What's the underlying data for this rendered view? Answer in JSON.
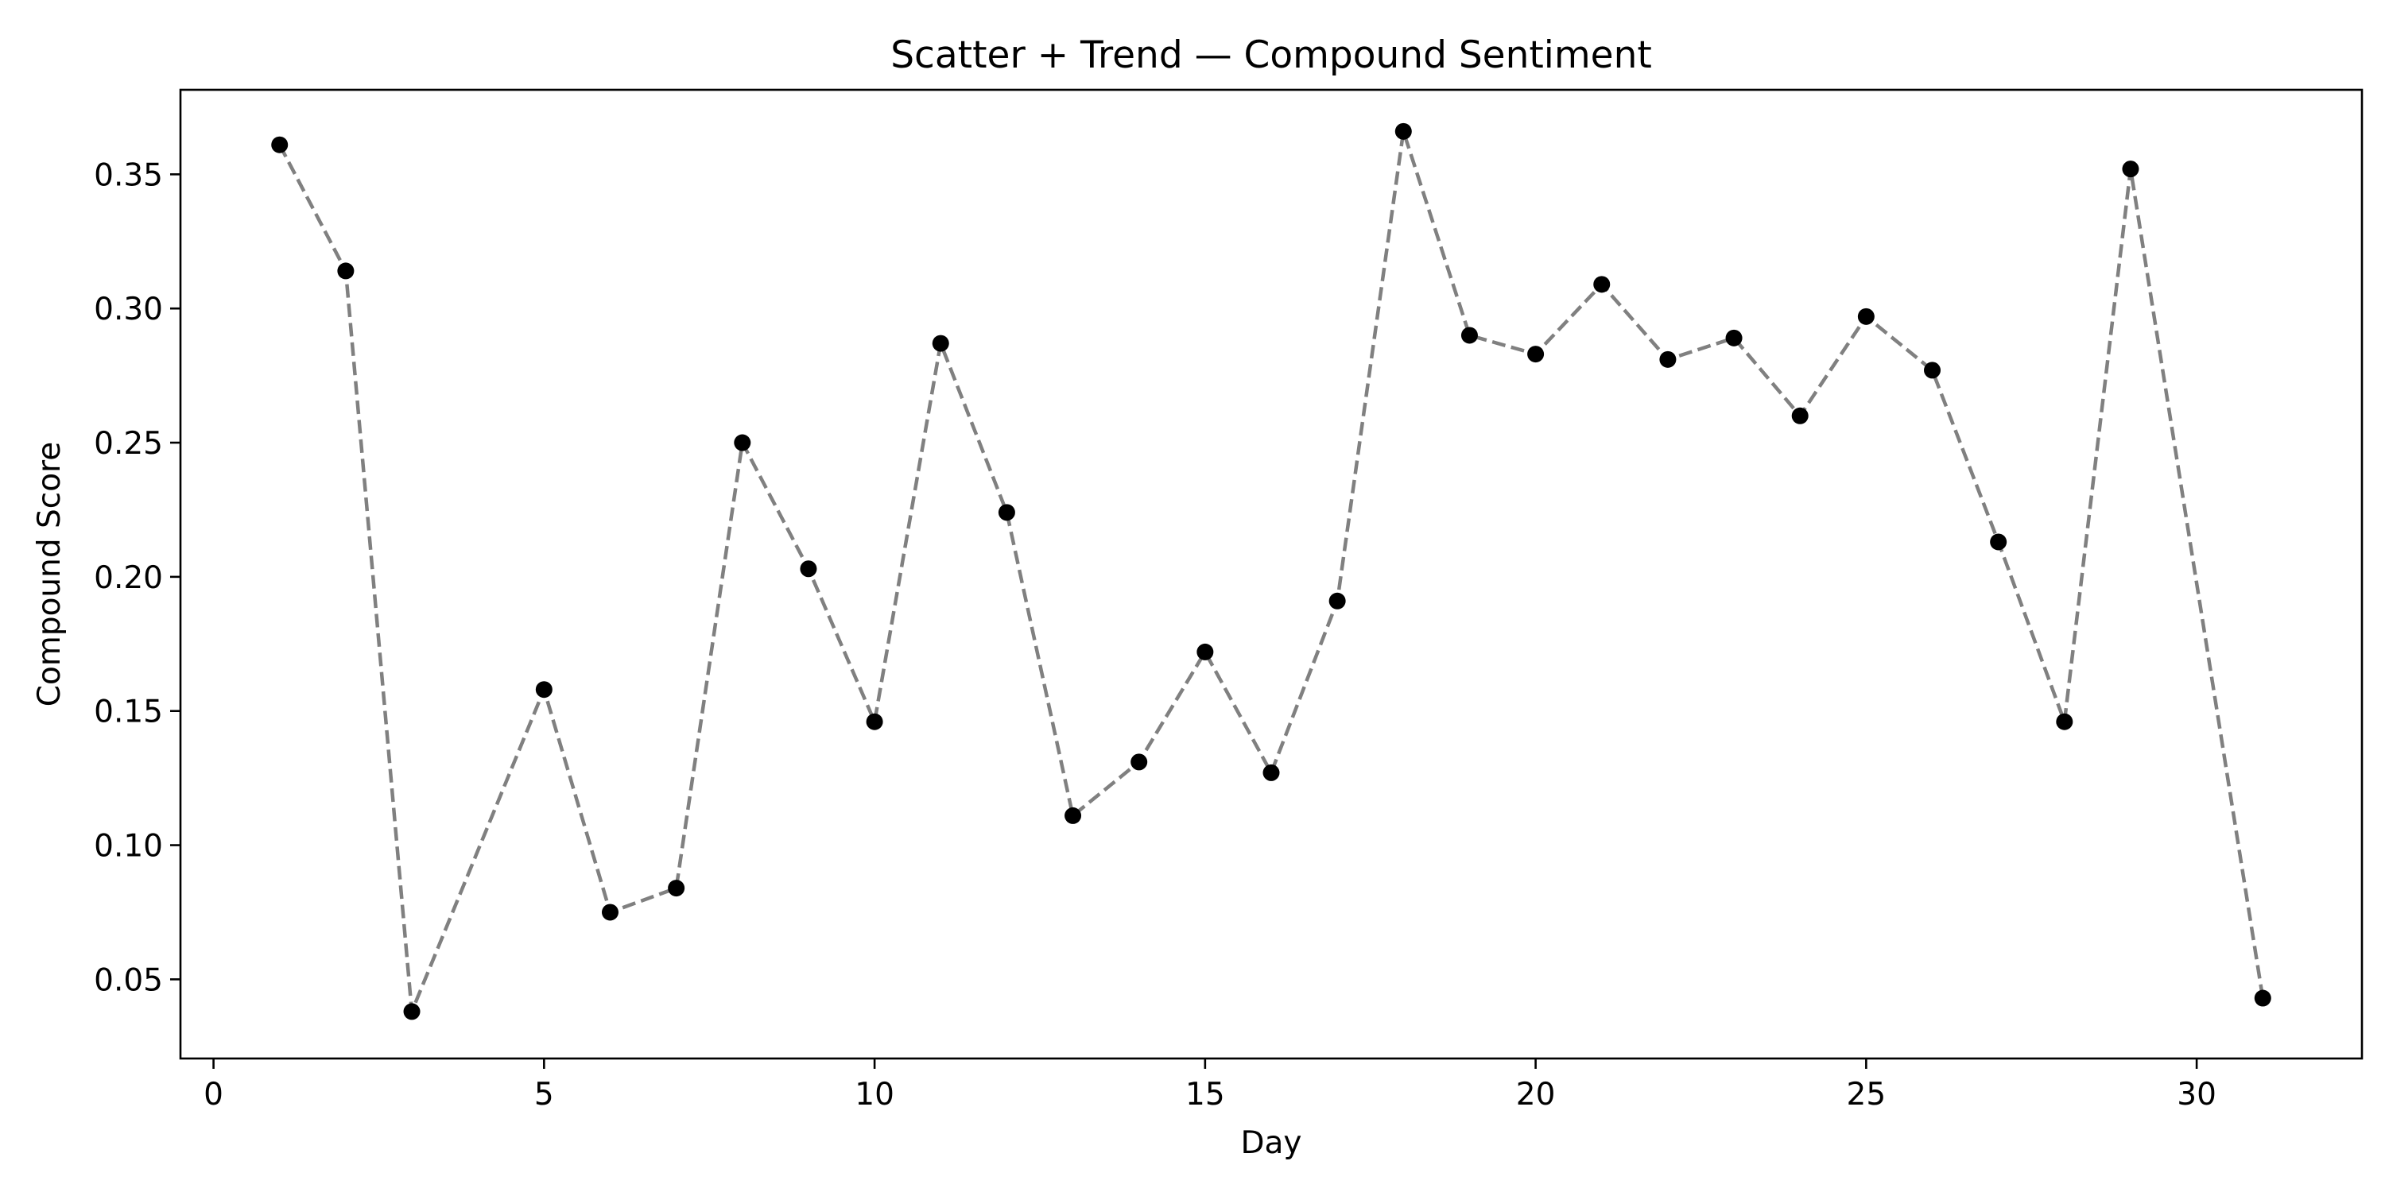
{
  "chart_data": {
    "type": "scatter",
    "title": "Scatter + Trend — Compound Sentiment",
    "xlabel": "Day",
    "ylabel": "Compound Score",
    "xlim": [
      -0.5,
      32.5
    ],
    "ylim": [
      0.0205,
      0.3815
    ],
    "xticks": [
      0,
      5,
      10,
      15,
      20,
      25,
      30
    ],
    "xtick_labels": [
      "0",
      "5",
      "10",
      "15",
      "20",
      "25",
      "30"
    ],
    "yticks": [
      0.05,
      0.1,
      0.15,
      0.2,
      0.25,
      0.3,
      0.35
    ],
    "ytick_labels": [
      "0.05",
      "0.10",
      "0.15",
      "0.20",
      "0.25",
      "0.30",
      "0.35"
    ],
    "grid": false,
    "legend": "none",
    "colors": {
      "points": "#000000",
      "trend": "#808080",
      "trend_style": "dashed"
    },
    "x": [
      1,
      2,
      3,
      4,
      5,
      6,
      7,
      8,
      9,
      10,
      11,
      12,
      13,
      14,
      15,
      16,
      17,
      18,
      19,
      20,
      21,
      22,
      23,
      24,
      25,
      26,
      27,
      28,
      29,
      30,
      31
    ],
    "y": [
      0.361,
      0.314,
      0.038,
      null,
      0.158,
      0.075,
      0.084,
      0.25,
      0.203,
      0.146,
      0.287,
      0.224,
      0.111,
      0.131,
      0.172,
      0.127,
      0.191,
      0.366,
      0.29,
      0.283,
      0.309,
      0.281,
      0.289,
      0.26,
      0.297,
      0.277,
      0.213,
      0.146,
      0.352,
      null,
      0.043
    ]
  }
}
